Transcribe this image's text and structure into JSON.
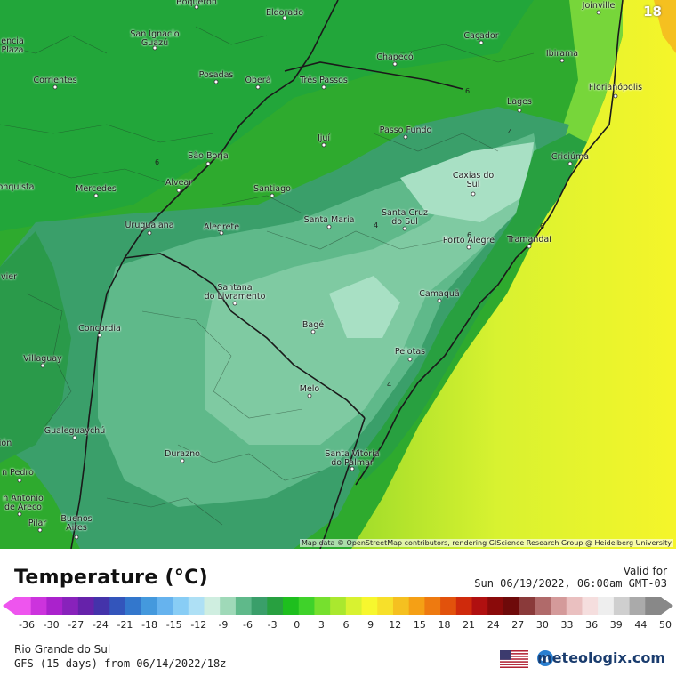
{
  "map": {
    "valid_hour": "18",
    "attribution": "Map data © OpenStreetMap contributors, rendering GIScience Research Group @ Heidelberg University",
    "cities": [
      {
        "name": "Boqueron",
        "id": "boqueron"
      },
      {
        "name": "Eldorado",
        "id": "eldorado"
      },
      {
        "name": "Joinville",
        "id": "joinville"
      },
      {
        "name": "encia\nPlaza",
        "id": "encia-plaza"
      },
      {
        "name": "San Ignacio\nGuazú",
        "id": "san-ignacio-guazu"
      },
      {
        "name": "Caçador",
        "id": "cacador"
      },
      {
        "name": "Ibirama",
        "id": "ibirama"
      },
      {
        "name": "Posadas",
        "id": "posadas"
      },
      {
        "name": "Chapecó",
        "id": "chapeco"
      },
      {
        "name": "Corrientes",
        "id": "corrientes"
      },
      {
        "name": "Oberá",
        "id": "obera"
      },
      {
        "name": "Três Passos",
        "id": "tres-passos"
      },
      {
        "name": "Florianópolis",
        "id": "florianopolis"
      },
      {
        "name": "Lages",
        "id": "lages"
      },
      {
        "name": "Passo Fundo",
        "id": "passo-fundo"
      },
      {
        "name": "Ijuí",
        "id": "ijui"
      },
      {
        "name": "São Borja",
        "id": "sao-borja"
      },
      {
        "name": "Criciúma",
        "id": "criciuma"
      },
      {
        "name": "Caxias do\nSul",
        "id": "caxias-do-sul"
      },
      {
        "name": "onquista",
        "id": "onquista"
      },
      {
        "name": "Alvear",
        "id": "alvear"
      },
      {
        "name": "Mercedes",
        "id": "mercedes"
      },
      {
        "name": "Santiago",
        "id": "santiago"
      },
      {
        "name": "Santa Cruz\ndo Sul",
        "id": "santa-cruz-do-sul"
      },
      {
        "name": "Santa Maria",
        "id": "santa-maria"
      },
      {
        "name": "Uruguaiana",
        "id": "uruguaiana"
      },
      {
        "name": "Alegrete",
        "id": "alegrete"
      },
      {
        "name": "Porto Alegre",
        "id": "porto-alegre"
      },
      {
        "name": "Tramandaí",
        "id": "tramandai"
      },
      {
        "name": "vier",
        "id": "vier"
      },
      {
        "name": "Santana\ndo Livramento",
        "id": "santana-do-livramento"
      },
      {
        "name": "Camaquã",
        "id": "camaqua"
      },
      {
        "name": "Concordia",
        "id": "concordia"
      },
      {
        "name": "Bagé",
        "id": "bage"
      },
      {
        "name": "Pelotas",
        "id": "pelotas"
      },
      {
        "name": "Villaguay",
        "id": "villaguay"
      },
      {
        "name": "Melo",
        "id": "melo"
      },
      {
        "name": "Gualeguaychú",
        "id": "gualeguaychu"
      },
      {
        "name": "ión",
        "id": "ion"
      },
      {
        "name": "Santa Vitória\ndo Palmar",
        "id": "santa-vitoria-do-palmar"
      },
      {
        "name": "Durazno",
        "id": "durazno"
      },
      {
        "name": "n Pedro",
        "id": "san-pedro"
      },
      {
        "name": "n Antonio\nde Areco",
        "id": "san-antonio-de-areco"
      },
      {
        "name": "Pilar",
        "id": "pilar"
      },
      {
        "name": "Buenos\nAires",
        "id": "buenos-aires"
      }
    ],
    "contour_labels": [
      "6",
      "6",
      "4",
      "4",
      "6",
      "4",
      "6"
    ]
  },
  "legend": {
    "title": "Temperature (°C)",
    "valid_label": "Valid for",
    "valid_time": "Sun 06/19/2022, 06:00am GMT-03",
    "tick_labels": [
      "-36",
      "-30",
      "-27",
      "-24",
      "-21",
      "-18",
      "-15",
      "-12",
      "-9",
      "-6",
      "-3",
      "0",
      "3",
      "6",
      "9",
      "12",
      "15",
      "18",
      "21",
      "24",
      "27",
      "30",
      "33",
      "36",
      "39",
      "44",
      "50"
    ],
    "colors": [
      "#ee55ee",
      "#cc33dd",
      "#aa22cc",
      "#8822bb",
      "#6622aa",
      "#4433aa",
      "#3355bb",
      "#3377cc",
      "#4499dd",
      "#66b3ee",
      "#88cdf5",
      "#aee0f5",
      "#cfeee0",
      "#9fd9b8",
      "#5fb98a",
      "#3a9f6a",
      "#28a040",
      "#1ebf1e",
      "#3fd22a",
      "#76e02e",
      "#aae82e",
      "#d8f230",
      "#f7f72e",
      "#f7e02a",
      "#f5c020",
      "#f5a015",
      "#ee7a10",
      "#e2520c",
      "#cf2a0c",
      "#b01010",
      "#8a0a0a",
      "#6e0a0a",
      "#8a3a3a",
      "#b06a6a",
      "#d49a9a",
      "#eac0c0",
      "#f5dede",
      "#eeeeee",
      "#cfcfcf",
      "#aaaaaa",
      "#888888"
    ]
  },
  "footer": {
    "region": "Rio Grande do Sul",
    "model": "GFS (15 days) from 06/14/2022/18z",
    "brand": "meteologix.com"
  }
}
